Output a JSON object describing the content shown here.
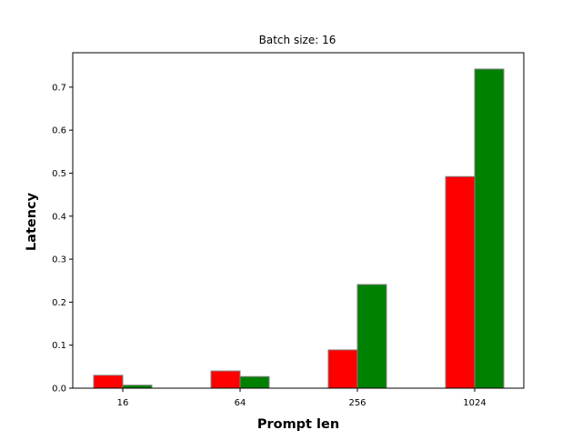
{
  "chart_data": {
    "type": "bar",
    "title": "Batch size: 16",
    "xlabel": "Prompt len",
    "ylabel": "Latency",
    "categories": [
      "16",
      "64",
      "256",
      "1024"
    ],
    "series": [
      {
        "values": [
          0.03,
          0.04,
          0.089,
          0.492
        ],
        "color": "#ff0000"
      },
      {
        "values": [
          0.007,
          0.027,
          0.241,
          0.742
        ],
        "color": "#008000"
      }
    ],
    "ylim": [
      0,
      0.78
    ],
    "yticks": [
      0.0,
      0.1,
      0.2,
      0.3,
      0.4,
      0.5,
      0.6,
      0.7
    ],
    "yticklabels": [
      "0.0",
      "0.1",
      "0.2",
      "0.3",
      "0.4",
      "0.5",
      "0.6",
      "0.7"
    ],
    "grid": false,
    "legend": "none",
    "bar_edge_color": "#808080"
  }
}
